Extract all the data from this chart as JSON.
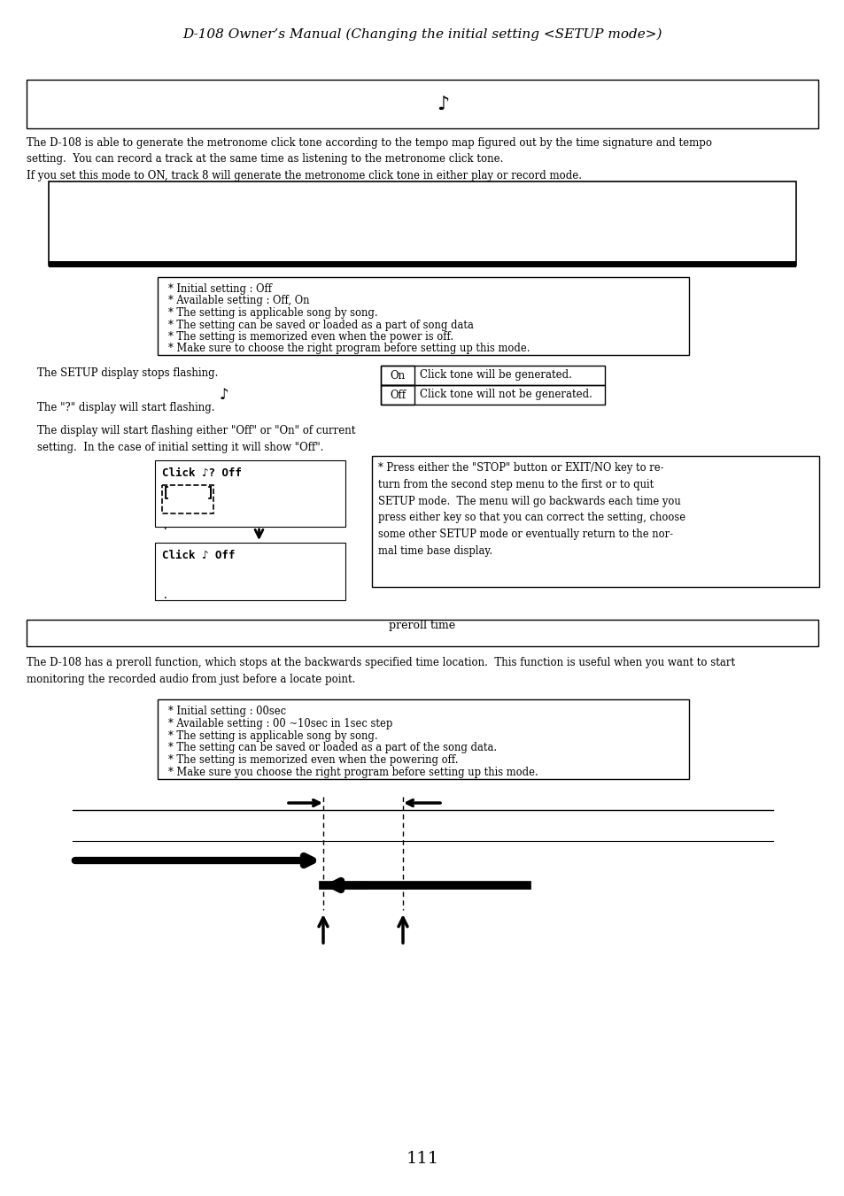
{
  "title": "D-108 Owner’s Manual (Changing the initial setting <SETUP mode>)",
  "bg_color": "#ffffff",
  "text_color": "#000000",
  "page_number": "111",
  "section1_para1": "The D-108 is able to generate the metronome click tone according to the tempo map figured out by the time signature and tempo\nsetting.  You can record a track at the same time as listening to the metronome click tone.\nIf you set this mode to ON, track 8 will generate the metronome click tone in either play or record mode.",
  "info_box1_lines": [
    "* Initial setting : Off",
    "* Available setting : Off, On",
    "* The setting is applicable song by song.",
    "* The setting can be saved or loaded as a part of song data",
    "* The setting is memorized even when the power is off.",
    "* Make sure to choose the right program before setting up this mode."
  ],
  "left_col_text1": "The SETUP display stops flashing.",
  "left_col_text2": "The \"?\" display will start flashing.",
  "left_col_text3": "The display will start flashing either \"Off\" or \"On\" of current\nsetting.  In the case of initial setting it will show \"Off\".",
  "table_rows": [
    [
      "On",
      "Click tone will be generated."
    ],
    [
      "Off",
      "Click tone will not be generated."
    ]
  ],
  "stop_box_text": "* Press either the \"STOP\" button or EXIT/NO key to re-\nturn from the second step menu to the first or to quit\nSETUP mode.  The menu will go backwards each time you\npress either key so that you can correct the setting, choose\nsome other SETUP mode or eventually return to the nor-\nmal time base display.",
  "section2_para1": "The D-108 has a preroll function, which stops at the backwards specified time location.  This function is useful when you want to start\nmonitoring the recorded audio from just before a locate point.",
  "info_box2_lines": [
    "* Initial setting : 00sec",
    "* Available setting : 00 ~10sec in 1sec step",
    "* The setting is applicable song by song.",
    "* The setting can be saved or loaded as a part of the song data.",
    "* The setting is memorized even when the powering off.",
    "* Make sure you choose the right program before setting up this mode."
  ]
}
